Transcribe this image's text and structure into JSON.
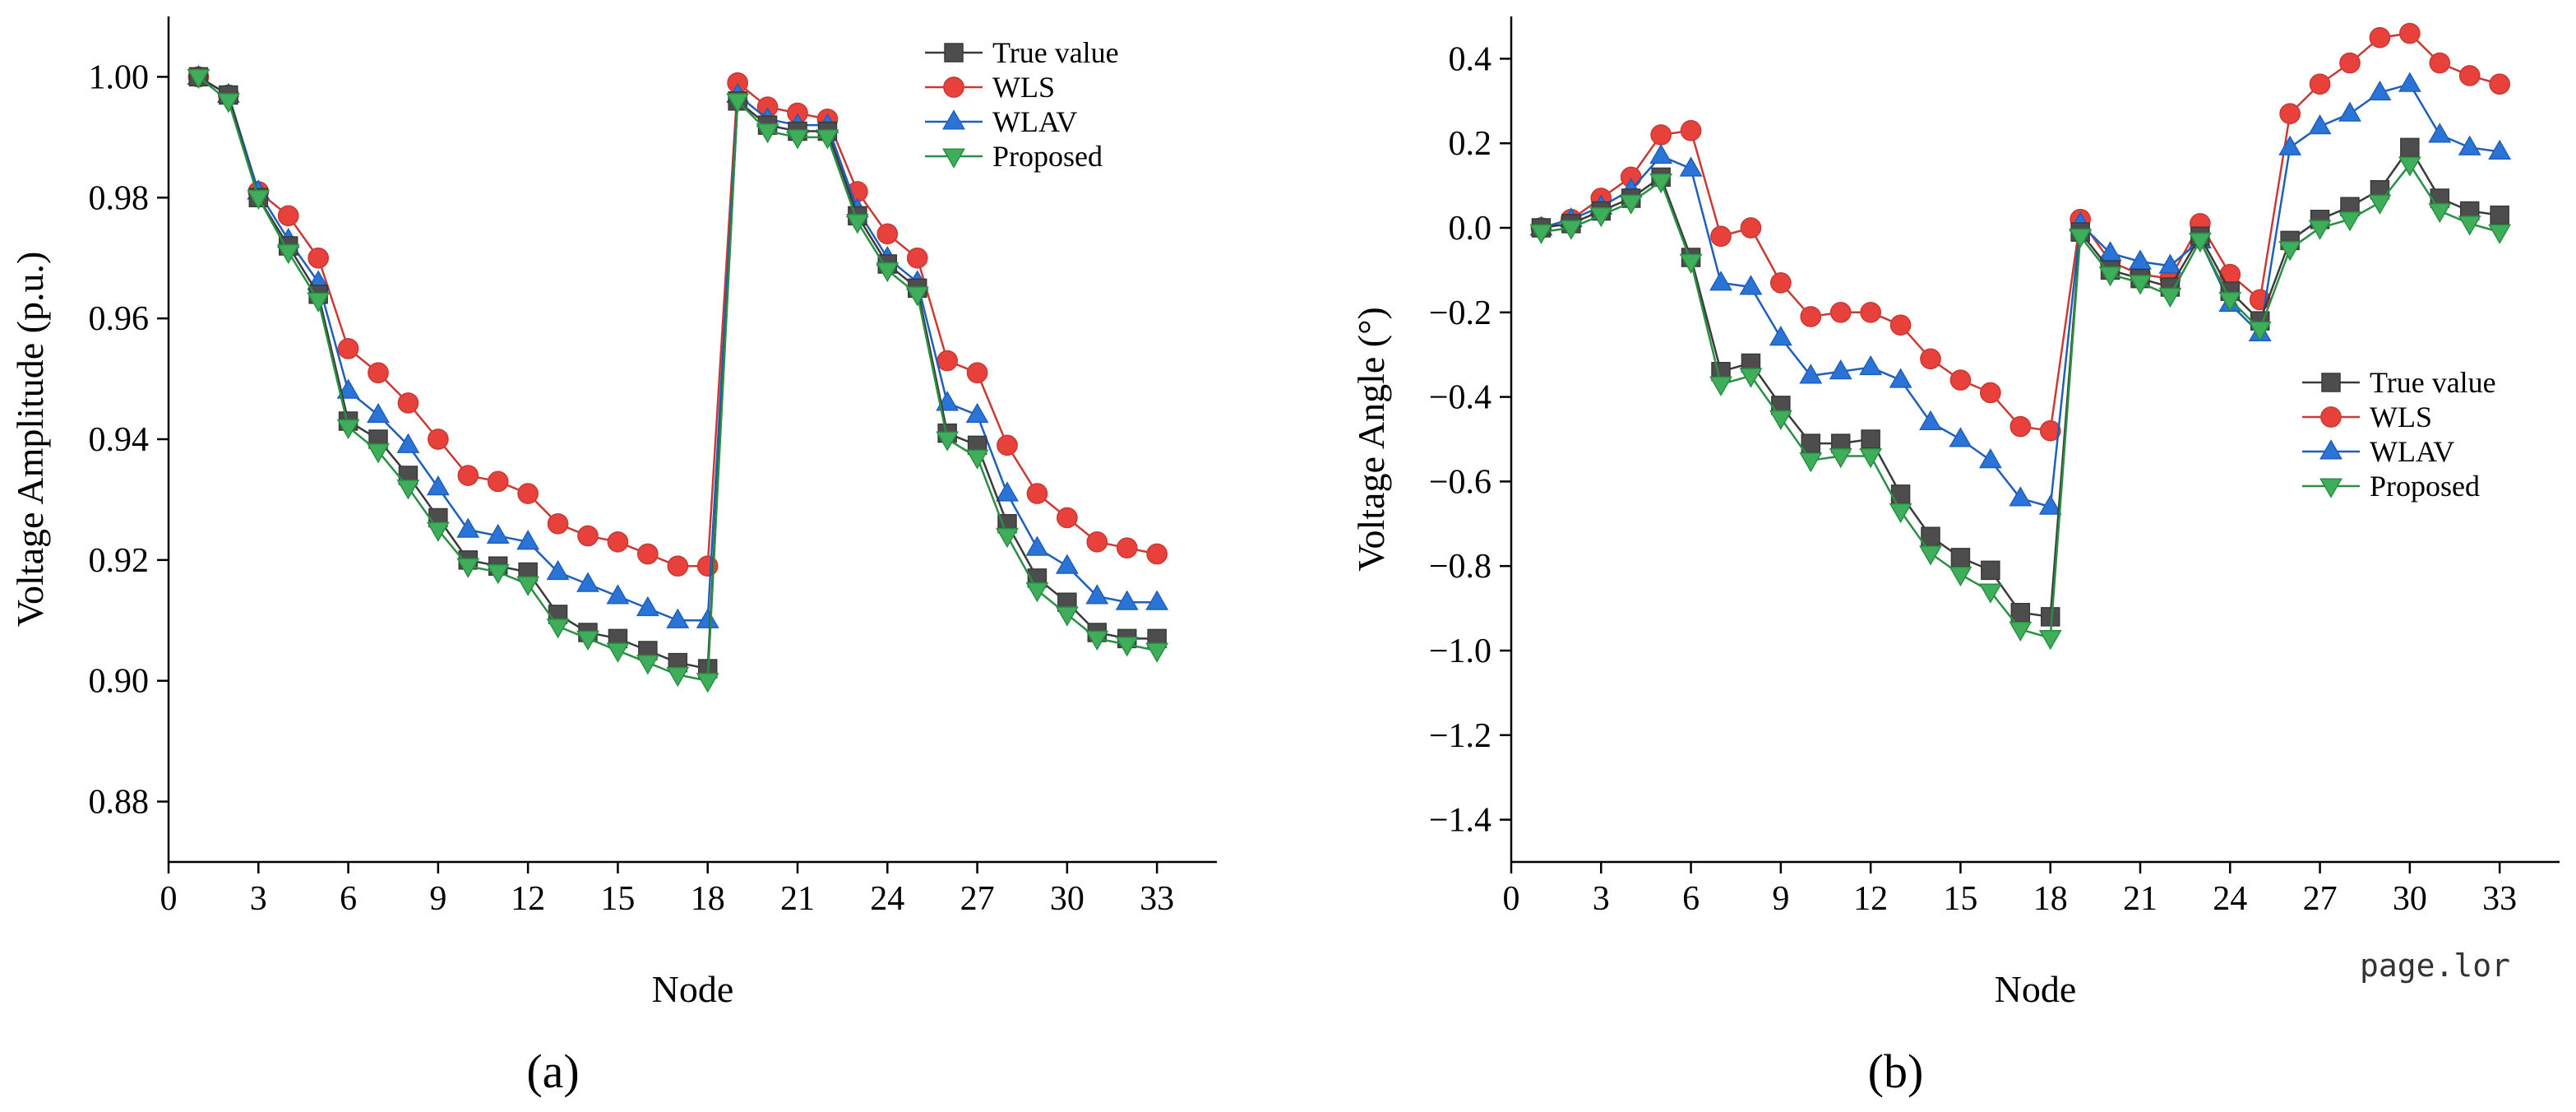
{
  "watermark": "page.lor",
  "series_styles": [
    {
      "name": "True value",
      "color": "#4d4d4d",
      "stroke": "#3a3a3a",
      "marker": "square"
    },
    {
      "name": "WLS",
      "color": "#e8403a",
      "stroke": "#c83a34",
      "marker": "circle"
    },
    {
      "name": "WLAV",
      "color": "#2a74d8",
      "stroke": "#1f5fbb",
      "marker": "triangle-up"
    },
    {
      "name": "Proposed",
      "color": "#3fae5a",
      "stroke": "#2a8e44",
      "marker": "triangle-down"
    }
  ],
  "chart_data": [
    {
      "type": "line",
      "panel_label": "(a)",
      "xlabel": "Node",
      "ylabel": "Voltage Amplitude (p.u.)",
      "xlim": [
        0,
        35
      ],
      "ylim": [
        0.87,
        1.01
      ],
      "xticks": [
        0,
        3,
        6,
        9,
        12,
        15,
        18,
        21,
        24,
        27,
        30,
        33
      ],
      "yticks": [
        0.88,
        0.9,
        0.92,
        0.94,
        0.96,
        0.98,
        1.0
      ],
      "ytick_decimals": 2,
      "legend_position": "top-right",
      "x": [
        1,
        2,
        3,
        4,
        5,
        6,
        7,
        8,
        9,
        10,
        11,
        12,
        13,
        14,
        15,
        16,
        17,
        18,
        19,
        20,
        21,
        22,
        23,
        24,
        25,
        26,
        27,
        28,
        29,
        30,
        31,
        32,
        33
      ],
      "series": [
        {
          "name": "True value",
          "values": [
            1.0,
            0.997,
            0.98,
            0.972,
            0.964,
            0.943,
            0.94,
            0.934,
            0.927,
            0.92,
            0.919,
            0.918,
            0.911,
            0.908,
            0.907,
            0.905,
            0.903,
            0.902,
            0.996,
            0.992,
            0.991,
            0.991,
            0.977,
            0.969,
            0.965,
            0.941,
            0.939,
            0.926,
            0.917,
            0.913,
            0.908,
            0.907,
            0.907
          ]
        },
        {
          "name": "WLS",
          "values": [
            1.0,
            0.997,
            0.981,
            0.977,
            0.97,
            0.955,
            0.951,
            0.946,
            0.94,
            0.934,
            0.933,
            0.931,
            0.926,
            0.924,
            0.923,
            0.921,
            0.919,
            0.919,
            0.999,
            0.995,
            0.994,
            0.993,
            0.981,
            0.974,
            0.97,
            0.953,
            0.951,
            0.939,
            0.931,
            0.927,
            0.923,
            0.922,
            0.921
          ]
        },
        {
          "name": "WLAV",
          "values": [
            1.0,
            0.997,
            0.981,
            0.973,
            0.966,
            0.948,
            0.944,
            0.939,
            0.932,
            0.925,
            0.924,
            0.923,
            0.918,
            0.916,
            0.914,
            0.912,
            0.91,
            0.91,
            0.997,
            0.993,
            0.992,
            0.992,
            0.978,
            0.97,
            0.966,
            0.946,
            0.944,
            0.931,
            0.922,
            0.919,
            0.914,
            0.913,
            0.913
          ]
        },
        {
          "name": "Proposed",
          "values": [
            1.0,
            0.996,
            0.98,
            0.971,
            0.963,
            0.942,
            0.938,
            0.932,
            0.925,
            0.919,
            0.918,
            0.916,
            0.909,
            0.907,
            0.905,
            0.903,
            0.901,
            0.9,
            0.996,
            0.991,
            0.99,
            0.99,
            0.976,
            0.968,
            0.964,
            0.94,
            0.937,
            0.924,
            0.915,
            0.911,
            0.907,
            0.906,
            0.905
          ]
        }
      ]
    },
    {
      "type": "line",
      "panel_label": "(b)",
      "xlabel": "Node",
      "ylabel": "Voltage Angle (°)",
      "xlim": [
        0,
        35
      ],
      "ylim": [
        -1.5,
        0.5
      ],
      "xticks": [
        0,
        3,
        6,
        9,
        12,
        15,
        18,
        21,
        24,
        27,
        30,
        33
      ],
      "yticks": [
        -1.4,
        -1.2,
        -1.0,
        -0.8,
        -0.6,
        -0.4,
        -0.2,
        0.0,
        0.2,
        0.4
      ],
      "ytick_decimals": 1,
      "legend_position": "middle-right",
      "x": [
        1,
        2,
        3,
        4,
        5,
        6,
        7,
        8,
        9,
        10,
        11,
        12,
        13,
        14,
        15,
        16,
        17,
        18,
        19,
        20,
        21,
        22,
        23,
        24,
        25,
        26,
        27,
        28,
        29,
        30,
        31,
        32,
        33
      ],
      "series": [
        {
          "name": "True value",
          "values": [
            0.0,
            0.01,
            0.04,
            0.07,
            0.12,
            -0.07,
            -0.34,
            -0.32,
            -0.42,
            -0.51,
            -0.51,
            -0.5,
            -0.63,
            -0.73,
            -0.78,
            -0.81,
            -0.91,
            -0.92,
            -0.01,
            -0.1,
            -0.12,
            -0.14,
            -0.02,
            -0.15,
            -0.22,
            -0.03,
            0.02,
            0.05,
            0.09,
            0.19,
            0.07,
            0.04,
            0.03
          ]
        },
        {
          "name": "WLS",
          "values": [
            0.0,
            0.02,
            0.07,
            0.12,
            0.22,
            0.23,
            -0.02,
            0.0,
            -0.13,
            -0.21,
            -0.2,
            -0.2,
            -0.23,
            -0.31,
            -0.36,
            -0.39,
            -0.47,
            -0.48,
            0.02,
            -0.08,
            -0.11,
            -0.12,
            0.01,
            -0.11,
            -0.17,
            0.27,
            0.34,
            0.39,
            0.45,
            0.46,
            0.39,
            0.36,
            0.34
          ]
        },
        {
          "name": "WLAV",
          "values": [
            0.0,
            0.02,
            0.05,
            0.09,
            0.17,
            0.14,
            -0.13,
            -0.14,
            -0.26,
            -0.35,
            -0.34,
            -0.33,
            -0.36,
            -0.46,
            -0.5,
            -0.55,
            -0.64,
            -0.66,
            0.01,
            -0.06,
            -0.08,
            -0.09,
            -0.03,
            -0.18,
            -0.25,
            0.19,
            0.24,
            0.27,
            0.32,
            0.34,
            0.22,
            0.19,
            0.18
          ]
        },
        {
          "name": "Proposed",
          "values": [
            -0.01,
            0.0,
            0.03,
            0.06,
            0.11,
            -0.08,
            -0.37,
            -0.35,
            -0.45,
            -0.55,
            -0.54,
            -0.54,
            -0.67,
            -0.77,
            -0.82,
            -0.86,
            -0.95,
            -0.97,
            -0.02,
            -0.11,
            -0.13,
            -0.16,
            -0.03,
            -0.17,
            -0.24,
            -0.05,
            0.0,
            0.02,
            0.06,
            0.15,
            0.04,
            0.01,
            -0.01
          ]
        }
      ]
    }
  ]
}
